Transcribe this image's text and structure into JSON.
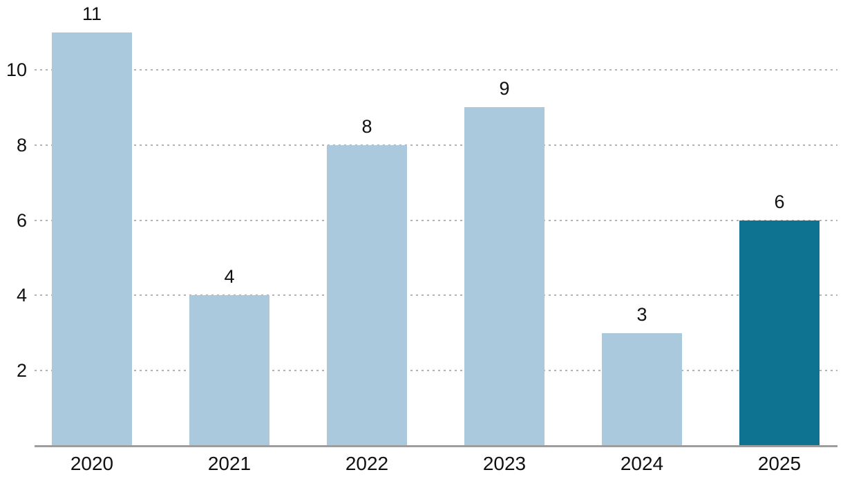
{
  "chart_data": {
    "type": "bar",
    "categories": [
      "2020",
      "2021",
      "2022",
      "2023",
      "2024",
      "2025"
    ],
    "values": [
      11,
      4,
      8,
      9,
      3,
      6
    ],
    "data_labels": [
      "11",
      "4",
      "8",
      "9",
      "3",
      "6"
    ],
    "yticks": [
      2,
      4,
      6,
      8,
      10
    ],
    "ylim": [
      0,
      11.6
    ],
    "highlight_index": 5,
    "highlight_category": "2025",
    "grid": "horizontal-dotted",
    "legend": "none",
    "colors": {
      "bar": "#abc9dd",
      "bar_highlight": "#0e7390",
      "gridline": "#b2b2b2",
      "axis_line": "#9d9d9d",
      "text": "#111111",
      "background": "#ffffff"
    }
  }
}
